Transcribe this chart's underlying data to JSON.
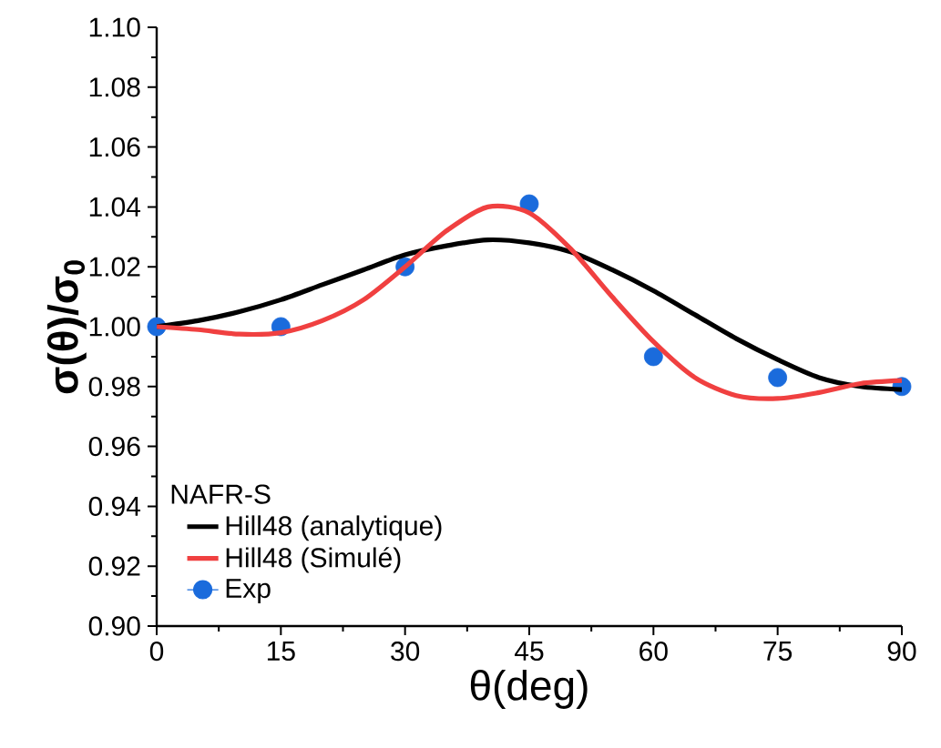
{
  "chart_data": {
    "type": "line",
    "xlabel": "θ(deg)",
    "ylabel": "σ(θ)/σ$_{0}$",
    "legend_title": "NAFR-S",
    "x": [
      0,
      5,
      10,
      15,
      20,
      25,
      30,
      35,
      40,
      45,
      50,
      55,
      60,
      65,
      70,
      75,
      80,
      85,
      90
    ],
    "series": [
      {
        "name": "Hill48 (analytique)",
        "color": "#000000",
        "values": [
          1.0,
          1.002,
          1.005,
          1.009,
          1.014,
          1.019,
          1.024,
          1.027,
          1.029,
          1.028,
          1.025,
          1.019,
          1.012,
          1.004,
          0.996,
          0.989,
          0.983,
          0.98,
          0.979
        ]
      },
      {
        "name": "Hill48 (Simulé)",
        "color": "#f04040",
        "values": [
          1.0,
          0.999,
          0.9975,
          0.998,
          1.002,
          1.009,
          1.02,
          1.032,
          1.04,
          1.038,
          1.026,
          1.01,
          0.995,
          0.983,
          0.977,
          0.976,
          0.978,
          0.981,
          0.982
        ]
      },
      {
        "name": "Exp",
        "type": "scatter",
        "marker": "circle",
        "color": "#1a6bdc",
        "x": [
          0,
          15,
          30,
          45,
          60,
          75,
          90
        ],
        "values": [
          1.0,
          1.0,
          1.02,
          1.041,
          0.99,
          0.983,
          0.98
        ]
      }
    ],
    "xlim": [
      0,
      90
    ],
    "xticks": [
      0,
      15,
      30,
      45,
      60,
      75,
      90
    ],
    "ylim": [
      0.9,
      1.1
    ],
    "yticks": [
      {
        "value": 0.9,
        "label": "0.90"
      },
      {
        "value": 0.92,
        "label": "0.92"
      },
      {
        "value": 0.94,
        "label": "0.94"
      },
      {
        "value": 0.96,
        "label": "0.96"
      },
      {
        "value": 0.98,
        "label": "0.98"
      },
      {
        "value": 1.0,
        "label": "1.00"
      },
      {
        "value": 1.02,
        "label": "1.02"
      },
      {
        "value": 1.04,
        "label": "1.04"
      },
      {
        "value": 1.06,
        "label": "1.06"
      },
      {
        "value": 1.08,
        "label": "1.08"
      },
      {
        "value": 1.1,
        "label": "1.10"
      }
    ],
    "legend": "bottom left",
    "grid": false
  }
}
